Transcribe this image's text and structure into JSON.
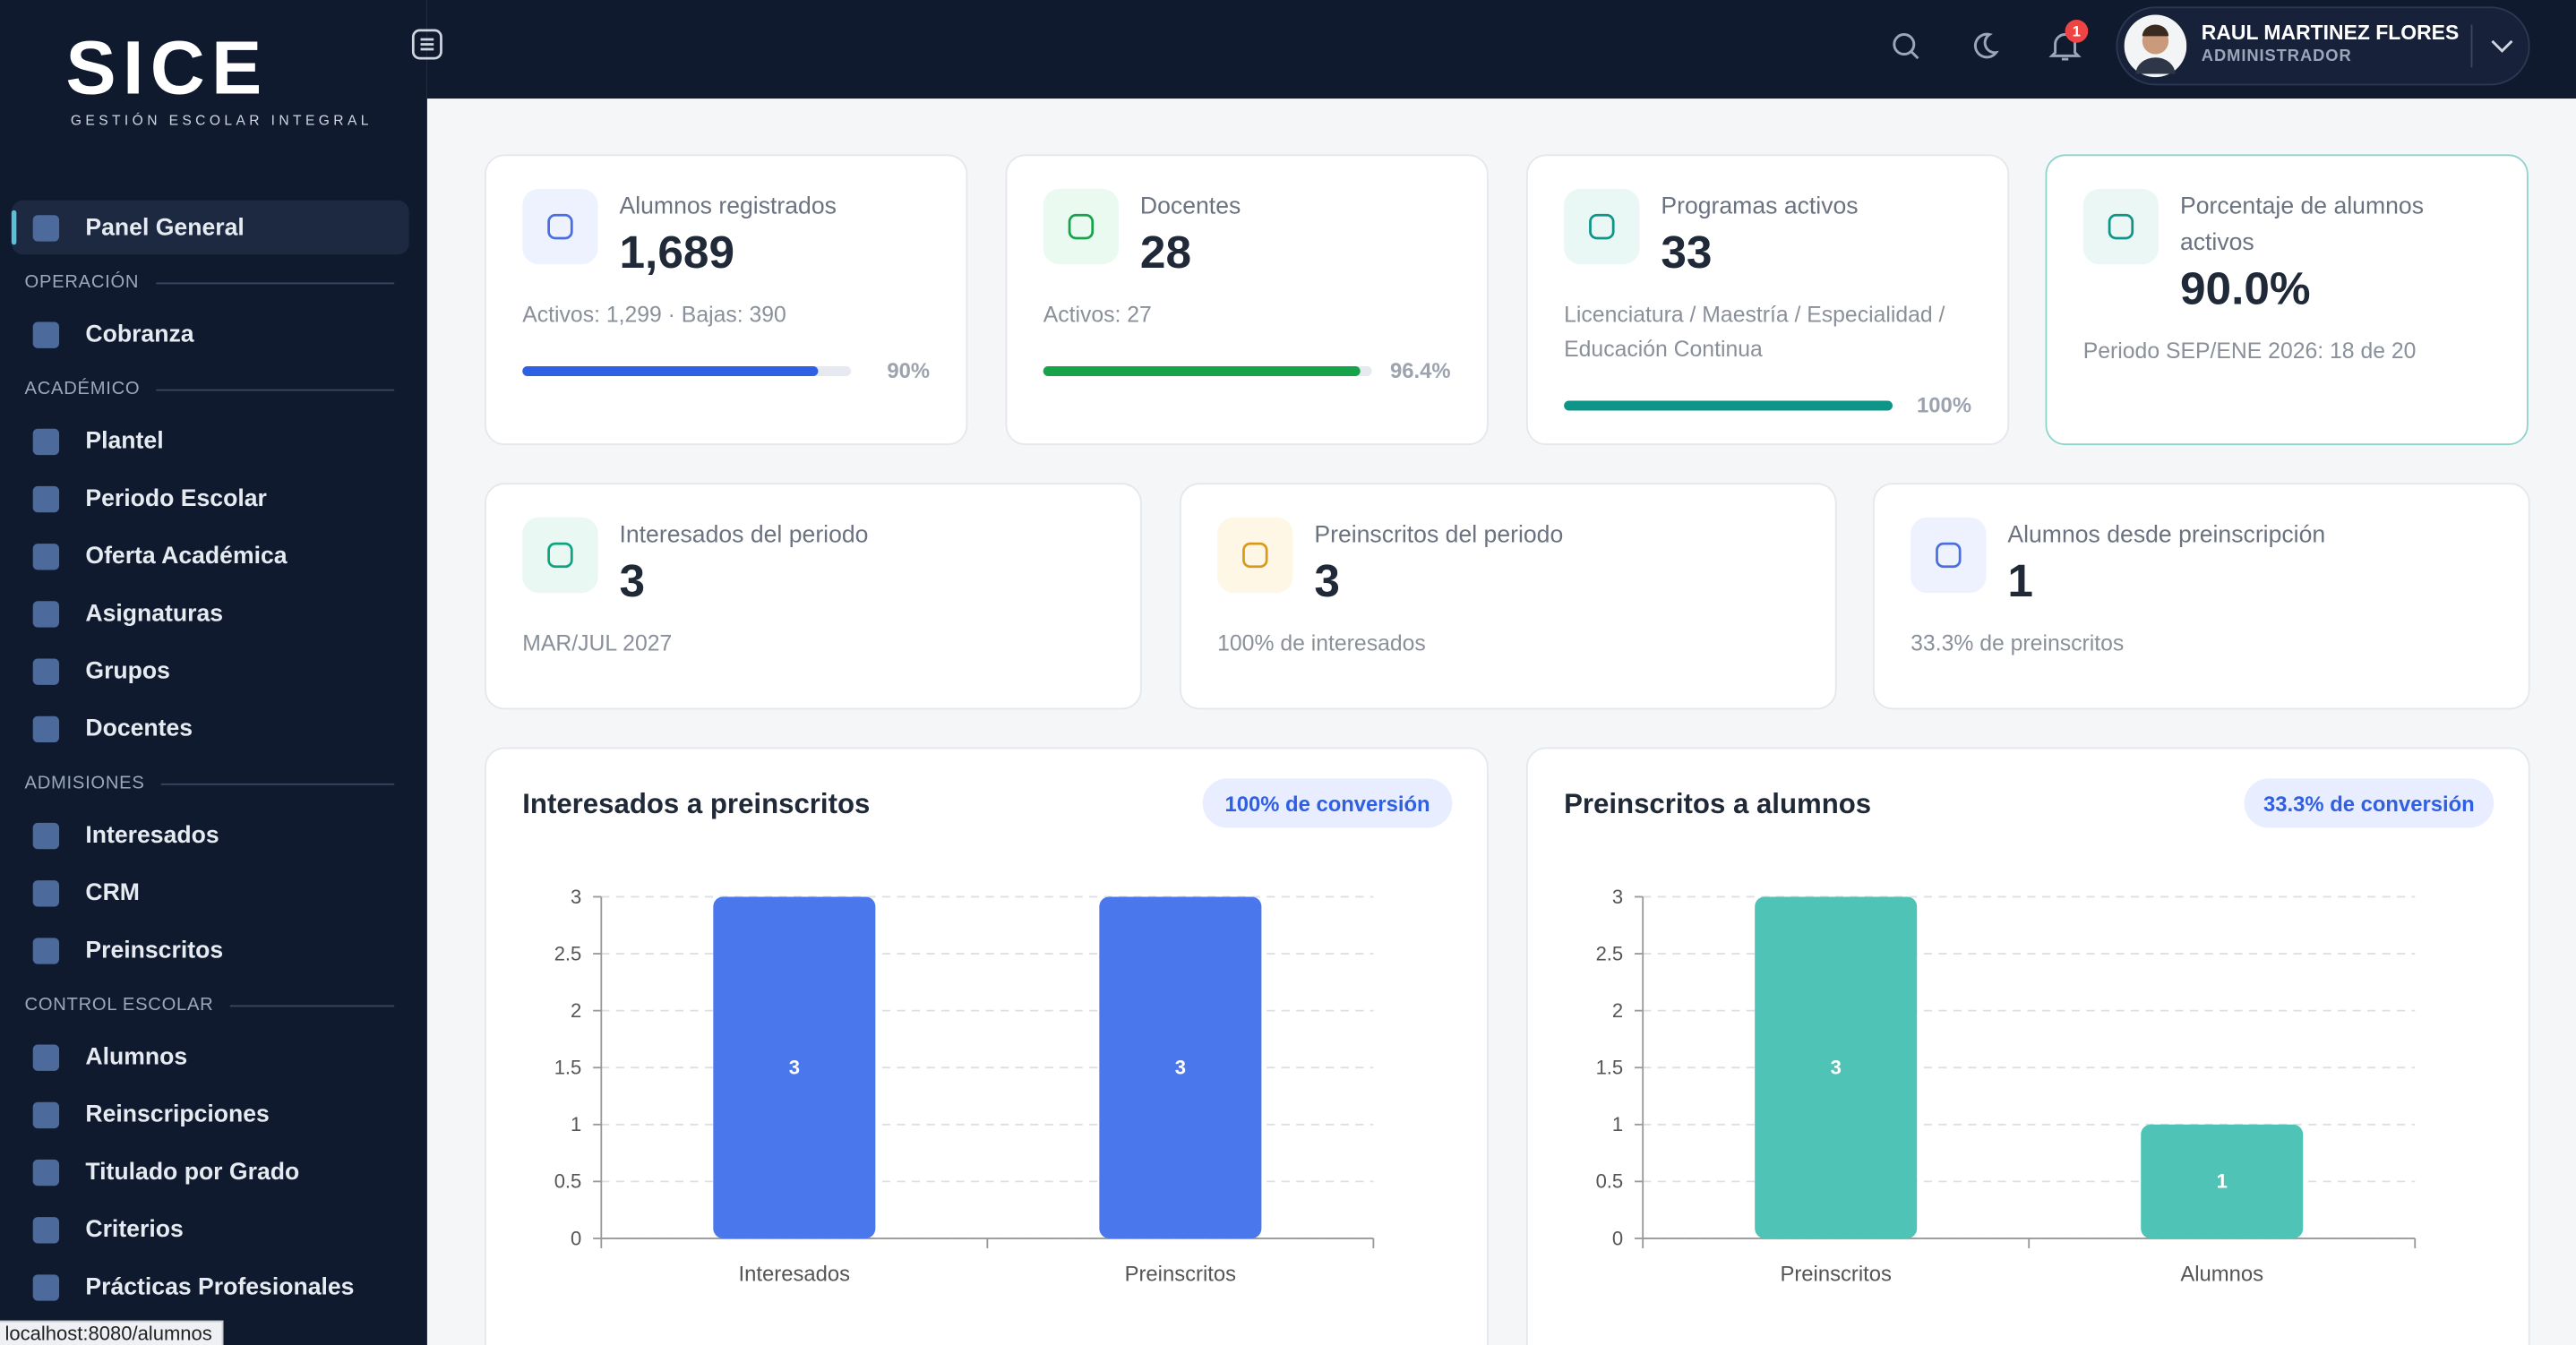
{
  "brand": {
    "name": "SICE",
    "tagline": "GESTIÓN ESCOLAR INTEGRAL"
  },
  "nav": {
    "top": "Panel General",
    "sections": [
      {
        "title": "OPERACIÓN",
        "items": [
          "Cobranza"
        ]
      },
      {
        "title": "ACADÉMICO",
        "items": [
          "Plantel",
          "Periodo Escolar",
          "Oferta Académica",
          "Asignaturas",
          "Grupos",
          "Docentes"
        ]
      },
      {
        "title": "ADMISIONES",
        "items": [
          "Interesados",
          "CRM",
          "Preinscritos"
        ]
      },
      {
        "title": "CONTROL ESCOLAR",
        "items": [
          "Alumnos",
          "Reinscripciones",
          "Titulado por Grado",
          "Criterios",
          "Prácticas Profesionales"
        ]
      }
    ]
  },
  "header": {
    "notifications": "1",
    "user": {
      "name": "RAUL MARTINEZ FLORES",
      "role": "ADMINISTRADOR"
    }
  },
  "stats": [
    {
      "title": "Alumnos registrados",
      "value": "1,689",
      "detail": "Activos: 1,299 · Bajas: 390",
      "progress": 90,
      "progress_label": "90%",
      "color": "#2f5fe3"
    },
    {
      "title": "Docentes",
      "value": "28",
      "detail": "Activos: 27",
      "progress": 96.4,
      "progress_label": "96.4%",
      "color": "#16a34a"
    },
    {
      "title": "Programas activos",
      "value": "33",
      "detail": "Licenciatura / Maestría / Especialidad / Educación Continua",
      "progress": 100,
      "progress_label": "100%",
      "color": "#0f9488"
    },
    {
      "title": "Porcentaje de alumnos activos",
      "value": "90.0%",
      "detail": "Periodo SEP/ENE 2026: 18 de 20"
    }
  ],
  "stats2": [
    {
      "title": "Interesados del periodo",
      "value": "3",
      "detail": "MAR/JUL 2027"
    },
    {
      "title": "Preinscritos del periodo",
      "value": "3",
      "detail": "100% de interesados"
    },
    {
      "title": "Alumnos desde preinscripción",
      "value": "1",
      "detail": "33.3% de preinscritos"
    }
  ],
  "charts": [
    {
      "type": "bar",
      "title": "Interesados a preinscritos",
      "badge": "100% de conversión",
      "categories": [
        "Interesados",
        "Preinscritos"
      ],
      "values": [
        3,
        3
      ],
      "color": "#4a77ec",
      "ylim": [
        0,
        3
      ],
      "yticks": [
        0,
        0.5,
        1,
        1.5,
        2,
        2.5,
        3
      ],
      "grid": true
    },
    {
      "type": "bar",
      "title": "Preinscritos a alumnos",
      "badge": "33.3% de conversión",
      "categories": [
        "Preinscritos",
        "Alumnos"
      ],
      "values": [
        3,
        1
      ],
      "color": "#4fc4b6",
      "ylim": [
        0,
        3
      ],
      "yticks": [
        0,
        0.5,
        1,
        1.5,
        2,
        2.5,
        3
      ],
      "grid": true
    }
  ],
  "status_url": "localhost:8080/alumnos"
}
